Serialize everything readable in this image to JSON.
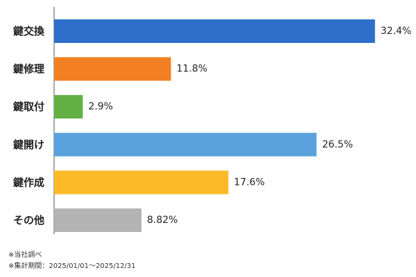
{
  "chart_data": {
    "type": "bar",
    "orientation": "horizontal",
    "categories": [
      "鍵交換",
      "鍵修理",
      "鍵取付",
      "鍵開け",
      "鍵作成",
      "その他"
    ],
    "values": [
      32.4,
      11.8,
      2.9,
      26.5,
      17.6,
      8.82
    ],
    "value_labels": [
      "32.4%",
      "11.8%",
      "2.9%",
      "26.5%",
      "17.6%",
      "8.82%"
    ],
    "colors": [
      "#2e6fcc",
      "#f28022",
      "#62b043",
      "#5aa2de",
      "#fdba27",
      "#b3b3b3"
    ],
    "unit": "%",
    "xlim": [
      0,
      35
    ],
    "grid": false,
    "legend": "none"
  },
  "notes": {
    "source": "※当社調べ",
    "period": "※集計期間：2025/01/01～2025/12/31"
  }
}
